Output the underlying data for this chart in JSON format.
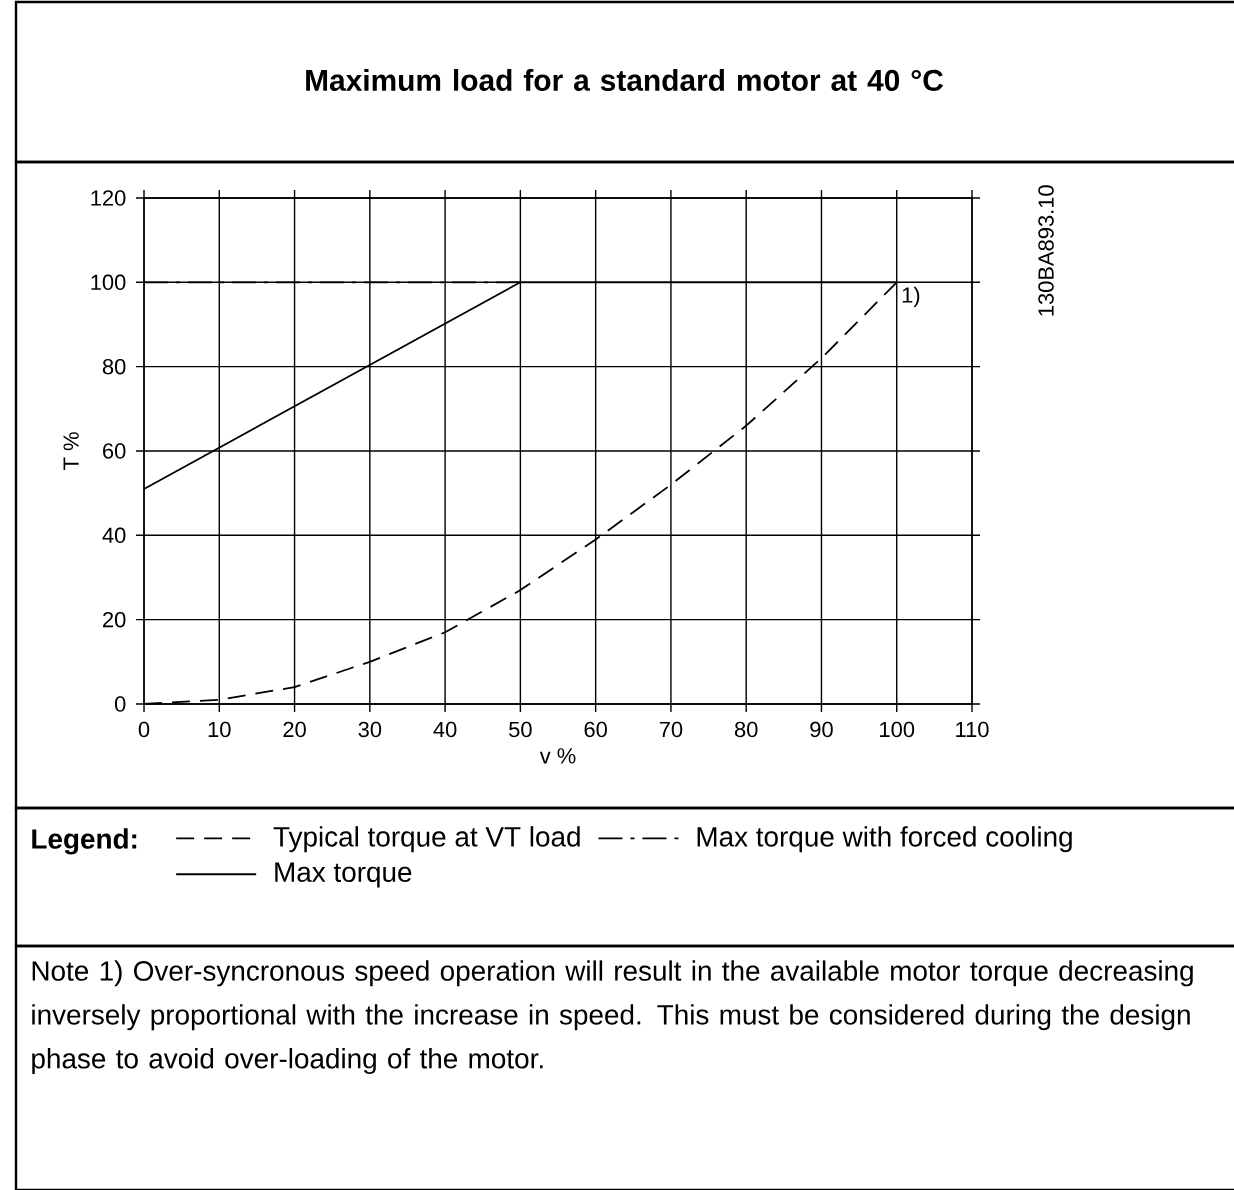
{
  "chart_data": {
    "type": "line",
    "title": "Maximum load for a standard motor at 40 °C",
    "xlabel": "v %",
    "ylabel": "T %",
    "legend_title": "Legend:",
    "x": [
      0,
      10,
      20,
      30,
      40,
      50,
      60,
      70,
      80,
      90,
      100
    ],
    "series": [
      {
        "name": "Typical torque at VT load",
        "color": "#000000",
        "line_style": "dashed",
        "values": [
          0,
          1,
          4,
          10,
          17,
          27,
          39,
          52,
          66,
          82,
          100
        ]
      },
      {
        "name": "Max torque with forced cooling",
        "color": "#000000",
        "line_style": "dashdot",
        "x": [
          0,
          50
        ],
        "values": [
          100,
          100
        ]
      },
      {
        "name": "Max torque",
        "color": "#000000",
        "line_style": "solid",
        "x": [
          0,
          50,
          100
        ],
        "values": [
          51,
          100,
          100
        ]
      }
    ],
    "xlim": [
      0,
      110
    ],
    "ylim": [
      0,
      120
    ],
    "xticks": [
      0,
      10,
      20,
      30,
      40,
      50,
      60,
      70,
      80,
      90,
      100,
      110
    ],
    "yticks": [
      0,
      20,
      40,
      60,
      80,
      100,
      120
    ],
    "grid": true,
    "legend": "bottom",
    "marker": "none",
    "annotations": [
      {
        "text": "1)",
        "x": 100,
        "y": 100
      },
      "130BA893.10",
      "Note 1) Over-syncronous speed operation will result in the available motor torque decreasing inversely proportional with the increase in speed. This must be considered during the design phase to avoid over-loading of the motor."
    ]
  }
}
